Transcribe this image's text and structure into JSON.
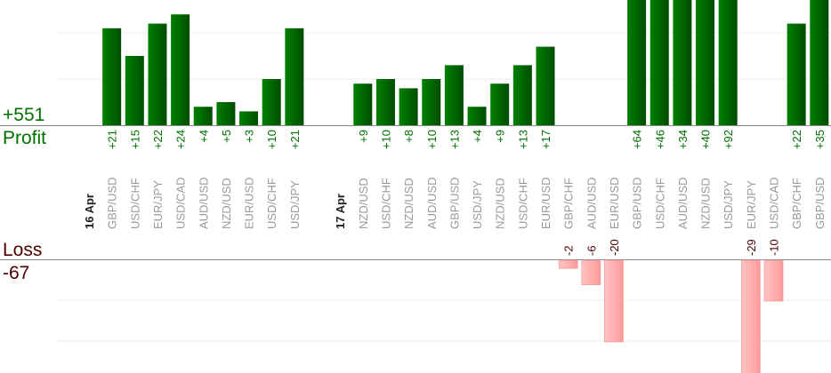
{
  "chart_data": {
    "type": "bar",
    "profit": {
      "label": "Profit",
      "total": "+551",
      "color": "#006400",
      "label_color": "#007000"
    },
    "loss": {
      "label": "Loss",
      "total": "-67",
      "color": "#ffb0b0",
      "label_color": "#4a0000"
    },
    "grid": true,
    "items": [
      {
        "date": "16 Apr"
      },
      {
        "pair": "GBP/USD",
        "value": 21,
        "label": "+21"
      },
      {
        "pair": "USD/CHF",
        "value": 15,
        "label": "+15"
      },
      {
        "pair": "EUR/JPY",
        "value": 22,
        "label": "+22"
      },
      {
        "pair": "USD/CAD",
        "value": 24,
        "label": "+24"
      },
      {
        "pair": "AUD/USD",
        "value": 4,
        "label": "+4"
      },
      {
        "pair": "NZD/USD",
        "value": 5,
        "label": "+5"
      },
      {
        "pair": "EUR/USD",
        "value": 3,
        "label": "+3"
      },
      {
        "pair": "USD/CHF",
        "value": 10,
        "label": "+10"
      },
      {
        "pair": "USD/JPY",
        "value": 21,
        "label": "+21"
      },
      {},
      {
        "date": "17 Apr"
      },
      {
        "pair": "NZD/USD",
        "value": 9,
        "label": "+9"
      },
      {
        "pair": "USD/CHF",
        "value": 10,
        "label": "+10"
      },
      {
        "pair": "NZD/USD",
        "value": 8,
        "label": "+8"
      },
      {
        "pair": "AUD/USD",
        "value": 10,
        "label": "+10"
      },
      {
        "pair": "GBP/USD",
        "value": 13,
        "label": "+13"
      },
      {
        "pair": "USD/JPY",
        "value": 4,
        "label": "+4"
      },
      {
        "pair": "NZD/USD",
        "value": 9,
        "label": "+9"
      },
      {
        "pair": "USD/CHF",
        "value": 13,
        "label": "+13"
      },
      {
        "pair": "EUR/USD",
        "value": 17,
        "label": "+17"
      },
      {
        "pair": "GBP/CHF",
        "value": -2,
        "label": "-2"
      },
      {
        "pair": "AUD/USD",
        "value": -6,
        "label": "-6"
      },
      {
        "pair": "EUR/USD",
        "value": -20,
        "label": "-20"
      },
      {
        "pair": "GBP/USD",
        "value": 64,
        "label": "+64"
      },
      {
        "pair": "USD/CHF",
        "value": 46,
        "label": "+46"
      },
      {
        "pair": "AUD/USD",
        "value": 34,
        "label": "+34"
      },
      {
        "pair": "NZD/USD",
        "value": 40,
        "label": "+40"
      },
      {
        "pair": "USD/JPY",
        "value": 92,
        "label": "+92"
      },
      {
        "pair": "EUR/JPY",
        "value": -29,
        "label": "-29"
      },
      {
        "pair": "USD/CAD",
        "value": -10,
        "label": "-10"
      },
      {
        "pair": "GBP/CHF",
        "value": 22,
        "label": "+22"
      },
      {
        "pair": "GBP/USD",
        "value": 35,
        "label": "+35"
      }
    ]
  }
}
